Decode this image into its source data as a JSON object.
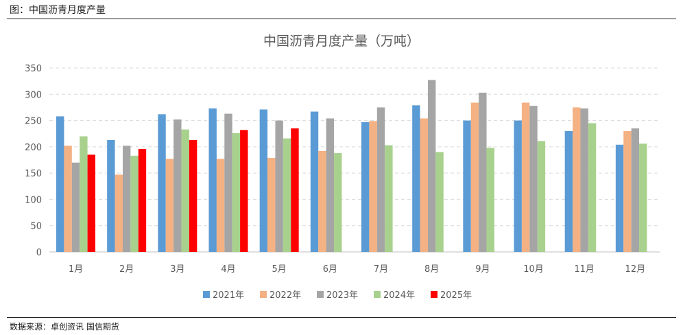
{
  "caption": "图：中国沥青月度产量",
  "source": "数据来源：卓创资讯  国信期货",
  "chart_data": {
    "type": "bar",
    "title": "中国沥青月度产量（万吨）",
    "xlabel": "",
    "ylabel": "",
    "ylim": [
      0,
      350
    ],
    "yticks": [
      0,
      50,
      100,
      150,
      200,
      250,
      300,
      350
    ],
    "grid": true,
    "legend_position": "bottom",
    "categories": [
      "1月",
      "2月",
      "3月",
      "4月",
      "5月",
      "6月",
      "7月",
      "8月",
      "9月",
      "10月",
      "11月",
      "12月"
    ],
    "series": [
      {
        "name": "2021年",
        "color": "#5B9BD5",
        "values": [
          258,
          213,
          262,
          273,
          271,
          267,
          247,
          279,
          250,
          250,
          230,
          204
        ]
      },
      {
        "name": "2022年",
        "color": "#F4B183",
        "values": [
          202,
          147,
          177,
          177,
          179,
          192,
          249,
          254,
          284,
          284,
          275,
          230
        ]
      },
      {
        "name": "2023年",
        "color": "#A5A5A5",
        "values": [
          170,
          202,
          252,
          263,
          250,
          254,
          275,
          327,
          303,
          278,
          273,
          235
        ]
      },
      {
        "name": "2024年",
        "color": "#A9D18E",
        "values": [
          220,
          183,
          233,
          226,
          216,
          188,
          203,
          190,
          198,
          211,
          245,
          206
        ]
      },
      {
        "name": "2025年",
        "color": "#FF0000",
        "values": [
          185,
          196,
          213,
          232,
          235,
          null,
          null,
          null,
          null,
          null,
          null,
          null
        ]
      }
    ]
  }
}
